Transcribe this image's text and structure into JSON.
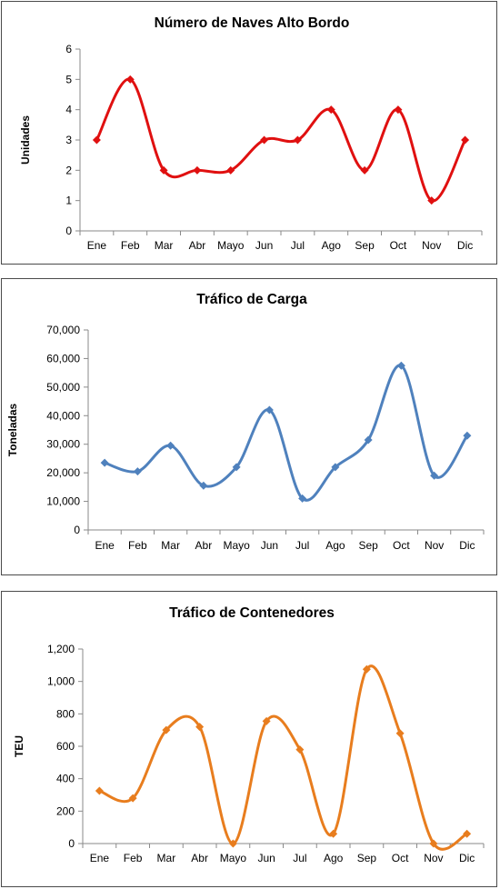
{
  "chart_data": [
    {
      "type": "line",
      "title": "Número de Naves Alto Bordo",
      "ylabel": "Unidades",
      "xlabel": "",
      "categories": [
        "Ene",
        "Feb",
        "Mar",
        "Abr",
        "Mayo",
        "Jun",
        "Jul",
        "Ago",
        "Sep",
        "Oct",
        "Nov",
        "Dic"
      ],
      "series": [
        {
          "values": [
            3,
            5,
            2,
            2,
            2,
            3,
            3,
            4,
            2,
            4,
            1,
            3
          ]
        }
      ],
      "ylim": [
        0,
        6
      ],
      "yticks": [
        0,
        1,
        2,
        3,
        4,
        5,
        6
      ],
      "ytick_labels": [
        "0",
        "1",
        "2",
        "3",
        "4",
        "5",
        "6"
      ],
      "grid": false,
      "smooth": true,
      "color": "#e01010"
    },
    {
      "type": "line",
      "title": "Tráfico de Carga",
      "ylabel": "Toneladas",
      "xlabel": "",
      "categories": [
        "Ene",
        "Feb",
        "Mar",
        "Abr",
        "Mayo",
        "Jun",
        "Jul",
        "Ago",
        "Sep",
        "Oct",
        "Nov",
        "Dic"
      ],
      "series": [
        {
          "values": [
            23500,
            20500,
            29500,
            15500,
            22000,
            42000,
            11000,
            22000,
            31500,
            57500,
            19000,
            33000
          ]
        }
      ],
      "ylim": [
        0,
        70000
      ],
      "yticks": [
        0,
        10000,
        20000,
        30000,
        40000,
        50000,
        60000,
        70000
      ],
      "ytick_labels": [
        "0",
        "10,000",
        "20,000",
        "30,000",
        "40,000",
        "50,000",
        "60,000",
        "70,000"
      ],
      "grid": false,
      "smooth": true,
      "color": "#4f81bd"
    },
    {
      "type": "line",
      "title": "Tráfico de Contenedores",
      "ylabel": "TEU",
      "xlabel": "",
      "categories": [
        "Ene",
        "Feb",
        "Mar",
        "Abr",
        "Mayo",
        "Jun",
        "Jul",
        "Ago",
        "Sep",
        "Oct",
        "Nov",
        "Dic"
      ],
      "series": [
        {
          "values": [
            325,
            280,
            700,
            720,
            0,
            755,
            580,
            60,
            1075,
            680,
            0,
            60
          ]
        }
      ],
      "ylim": [
        0,
        1200
      ],
      "yticks": [
        0,
        200,
        400,
        600,
        800,
        1000,
        1200
      ],
      "ytick_labels": [
        "0",
        "200",
        "400",
        "600",
        "800",
        "1,000",
        "1,200"
      ],
      "grid": false,
      "smooth": true,
      "color": "#e87d1e"
    }
  ]
}
